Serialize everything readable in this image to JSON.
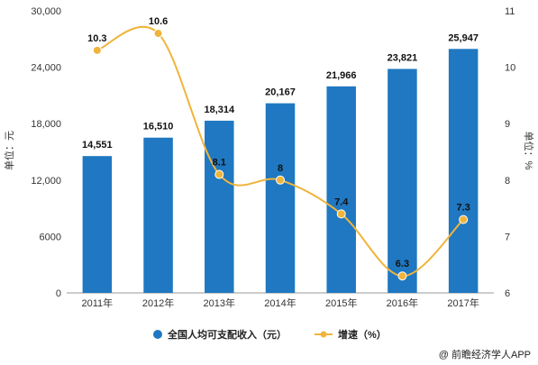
{
  "chart_data": {
    "type": "bar",
    "categories": [
      "2011年",
      "2012年",
      "2013年",
      "2014年",
      "2015年",
      "2016年",
      "2017年"
    ],
    "series": [
      {
        "name": "全国人均可支配收入（元）",
        "type": "bar",
        "axis": "left",
        "values": [
          14551,
          16510,
          18314,
          20167,
          21966,
          23821,
          25947
        ],
        "labels": [
          "14,551",
          "16,510",
          "18,314",
          "20,167",
          "21,966",
          "23,821",
          "25,947"
        ],
        "color": "#1f78c1"
      },
      {
        "name": "增速（%）",
        "type": "line",
        "axis": "right",
        "values": [
          10.3,
          10.6,
          8.1,
          8,
          7.4,
          6.3,
          7.3
        ],
        "labels": [
          "10.3",
          "10.6",
          "8.1",
          "8",
          "7.4",
          "6.3",
          "7.3"
        ],
        "color": "#f0b43c"
      }
    ],
    "ylabel": "单位：元",
    "y2label": "单位：%",
    "ylim": [
      0,
      30000
    ],
    "y2lim": [
      6,
      11
    ],
    "yticks": [
      "0",
      "6000",
      "12,000",
      "18,000",
      "24,000",
      "30,000"
    ],
    "y2ticks": [
      "6",
      "7",
      "8",
      "9",
      "10",
      "11"
    ],
    "grid": false,
    "legend_position": "bottom"
  },
  "source": "@ 前瞻经济学人APP"
}
